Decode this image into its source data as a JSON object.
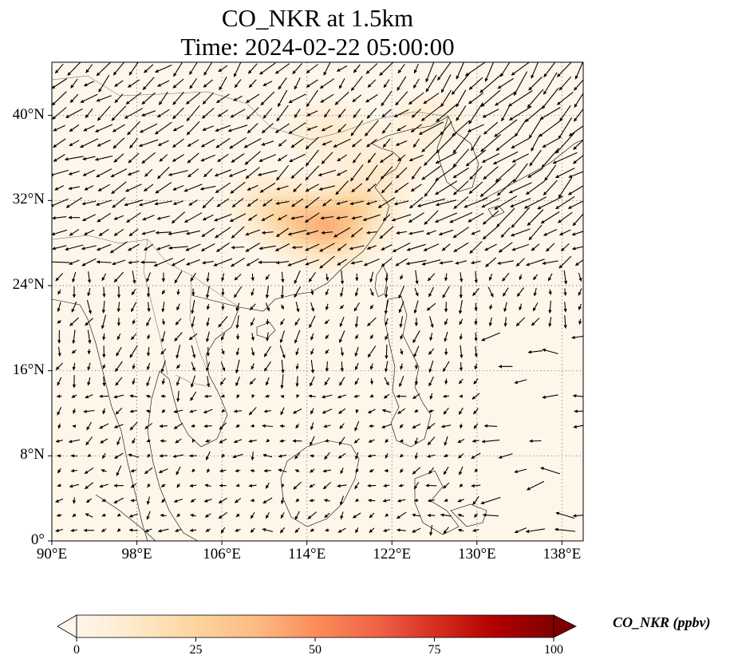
{
  "title": {
    "line1": "CO_NKR at 1.5km",
    "line2": "Time: 2024-02-22 05:00:00"
  },
  "map": {
    "extent": {
      "lon": [
        90,
        140
      ],
      "lat": [
        0,
        45
      ]
    },
    "projection": "PlateCarree",
    "gridlines": true,
    "gridline_style": "dotted",
    "lat_ticks": [
      {
        "value": 0,
        "label": "0°"
      },
      {
        "value": 8,
        "label": "8°N"
      },
      {
        "value": 16,
        "label": "16°N"
      },
      {
        "value": 24,
        "label": "24°N"
      },
      {
        "value": 32,
        "label": "32°N"
      },
      {
        "value": 40,
        "label": "40°N"
      }
    ],
    "lon_ticks": [
      {
        "value": 90,
        "label": "90°E"
      },
      {
        "value": 98,
        "label": "98°E"
      },
      {
        "value": 106,
        "label": "106°E"
      },
      {
        "value": 114,
        "label": "114°E"
      },
      {
        "value": 122,
        "label": "122°E"
      },
      {
        "value": 130,
        "label": "130°E"
      },
      {
        "value": 138,
        "label": "138°E"
      }
    ],
    "background_color": "#fff6ea",
    "coastline_color": "#000000"
  },
  "chart_data": {
    "type": "heatmap",
    "field_name": "CO_NKR",
    "units": "ppbv",
    "colormap": "OrRd",
    "vmin": 0,
    "vmax": 100,
    "background_value": 2,
    "hotspots": [
      {
        "lon": 116.5,
        "lat": 29.0,
        "value": 25
      },
      {
        "lon": 113.5,
        "lat": 30.0,
        "value": 20
      },
      {
        "lon": 118.5,
        "lat": 31.5,
        "value": 18
      },
      {
        "lon": 110.5,
        "lat": 31.5,
        "value": 12
      },
      {
        "lon": 116.0,
        "lat": 38.5,
        "value": 8
      },
      {
        "lon": 125.5,
        "lat": 39.5,
        "value": 6
      },
      {
        "lon": 121.0,
        "lat": 35.0,
        "value": 8
      }
    ],
    "wind_vectors": "quiver overlay, ~1.5° grid spacing",
    "colorbar": {
      "orientation": "horizontal",
      "ticks": [
        0,
        25,
        50,
        75,
        100
      ],
      "extend": "both",
      "label": "CO_NKR (ppbv)"
    }
  }
}
